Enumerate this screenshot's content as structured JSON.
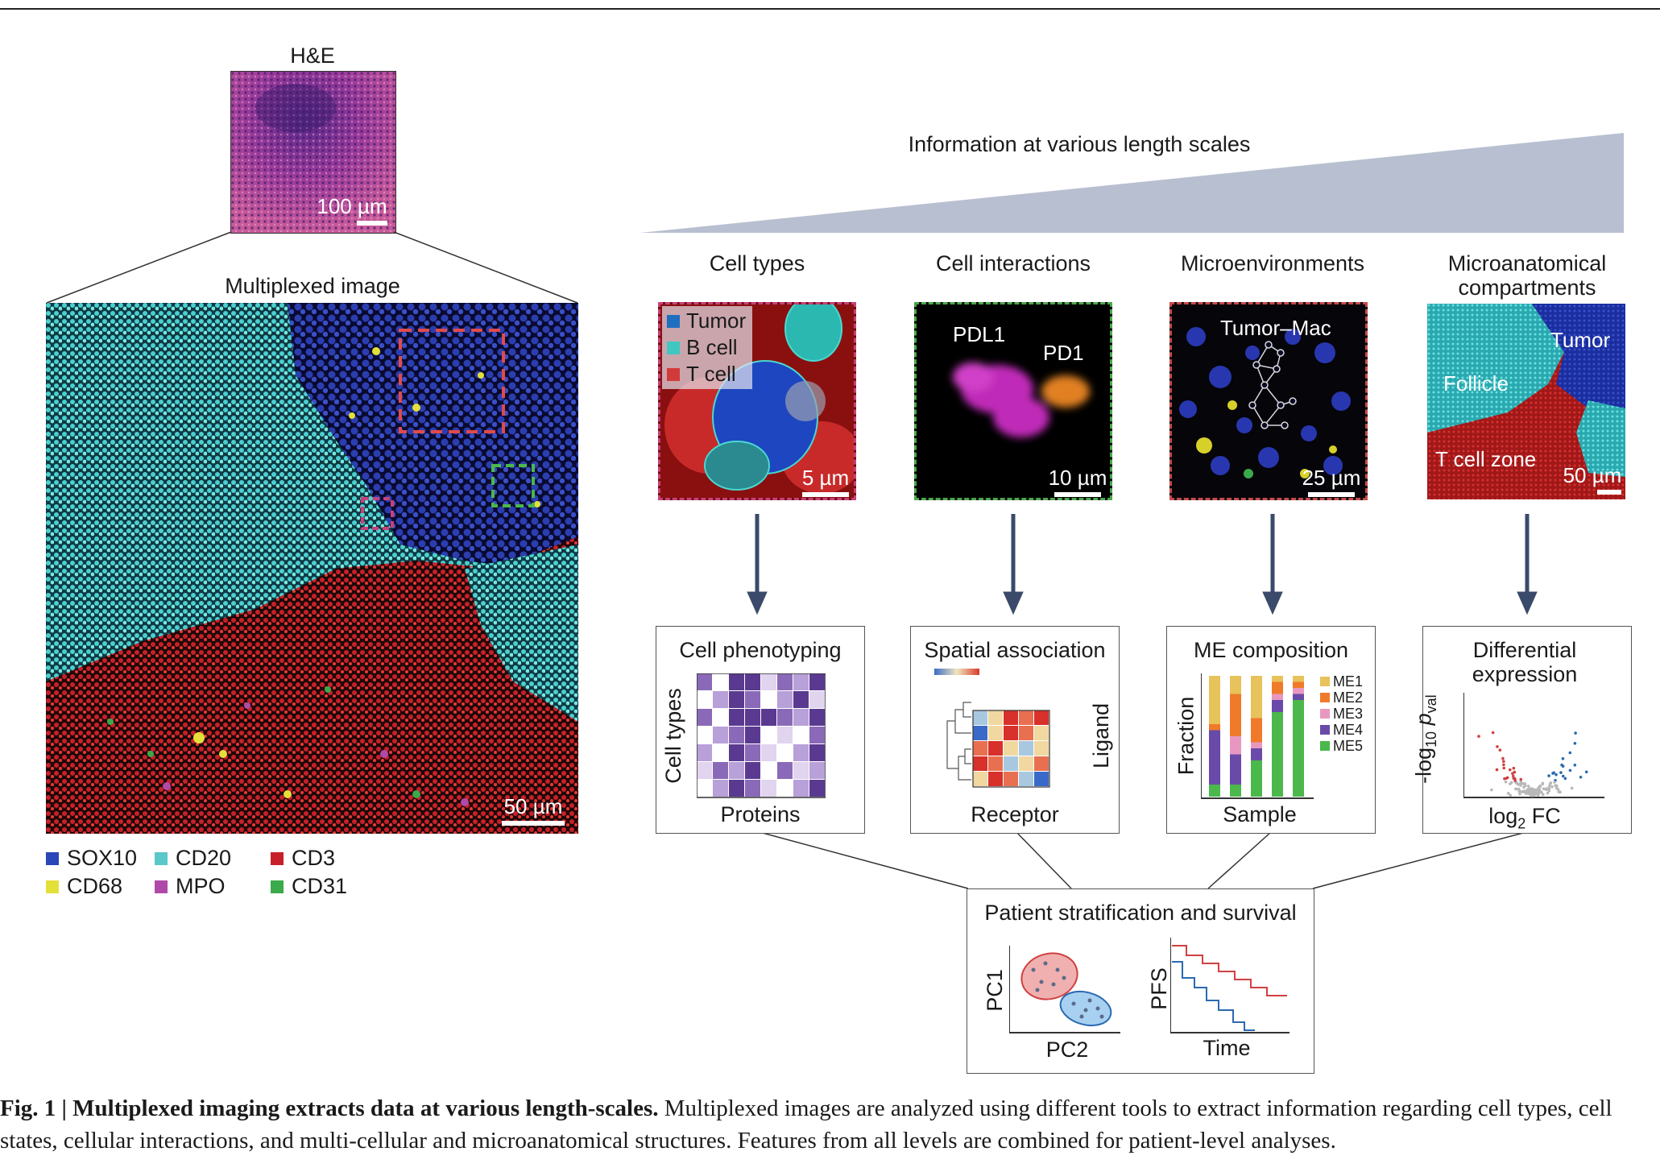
{
  "top_rule": true,
  "he": {
    "title": "H&E",
    "scale": "100 µm"
  },
  "multiplex": {
    "title": "Multiplexed image",
    "scale": "50 µm"
  },
  "legend": [
    {
      "name": "SOX10",
      "color": "#2b46b8"
    },
    {
      "name": "CD20",
      "color": "#5ac8c8"
    },
    {
      "name": "CD3",
      "color": "#c8202a"
    },
    {
      "name": "CD68",
      "color": "#e4e03a"
    },
    {
      "name": "MPO",
      "color": "#b04aa8"
    },
    {
      "name": "CD31",
      "color": "#3aaa4a"
    }
  ],
  "length_scale": {
    "label": "Information at various length scales"
  },
  "columns": [
    {
      "title": "Cell types",
      "scale": "5 µm",
      "border": "#c8407a",
      "legend": [
        "Tumor",
        "B cell",
        "T cell"
      ],
      "legend_colors": [
        "#1f6fc0",
        "#3ec8c0",
        "#d23a3a"
      ]
    },
    {
      "title": "Cell interactions",
      "scale": "10 µm",
      "border": "#4aa84a",
      "labels": [
        "PDL1",
        "PD1"
      ]
    },
    {
      "title": "Microenvironments",
      "scale": "25 µm",
      "border": "#c84a4a",
      "labels": [
        "Tumor–Mac"
      ]
    },
    {
      "title_lines": [
        "Microanatomical",
        "compartments"
      ],
      "scale": "50 µm",
      "labels": [
        "Tumor",
        "Follicle",
        "T cell zone"
      ]
    }
  ],
  "analyses": [
    {
      "title": "Cell phenotyping",
      "xlabel": "Proteins",
      "ylabel": "Cell types"
    },
    {
      "title": "Spatial association",
      "xlabel": "Receptor",
      "ylabel": "Ligand"
    },
    {
      "title": "ME composition",
      "xlabel": "Sample",
      "ylabel": "Fraction",
      "legend": [
        {
          "name": "ME1",
          "color": "#e8c25a"
        },
        {
          "name": "ME2",
          "color": "#f07a2a"
        },
        {
          "name": "ME3",
          "color": "#e898c0"
        },
        {
          "name": "ME4",
          "color": "#6a4aa8"
        },
        {
          "name": "ME5",
          "color": "#4ab84a"
        }
      ]
    },
    {
      "title_lines": [
        "Differential",
        "expression"
      ],
      "xlabel": "log",
      "xlabel_sub": "2",
      "xlabel_rest": " FC",
      "ylabel": "-log",
      "ylabel_sub": "10",
      "ylabel_p": "p",
      "ylabel_psub": "val"
    }
  ],
  "patient": {
    "title": "Patient stratification and survival",
    "pca": {
      "xlabel": "PC2",
      "ylabel": "PC1"
    },
    "km": {
      "xlabel": "Time",
      "ylabel": "PFS"
    }
  },
  "caption": {
    "bold": "Fig. 1 | Multiplexed imaging extracts data at various length-scales.",
    "text": " Multiplexed images are analyzed using different tools to extract information regarding cell types, cell states, cellular interactions, and multi-cellular and microanatomical structures. Features from all levels are combined for patient-level analyses."
  }
}
